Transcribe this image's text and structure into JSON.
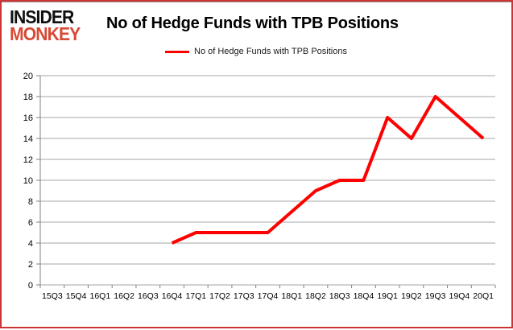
{
  "logo": {
    "line1": "INSIDER",
    "line2": "MONKEY"
  },
  "title": "No of Hedge Funds with TPB Positions",
  "legend": {
    "label": "No of Hedge Funds with TPB Positions"
  },
  "colors": {
    "series_red": "#ff0000",
    "logo_red": "#d84a35",
    "border_red": "#cc3333",
    "gridline_gray": "#a6a6a6",
    "axis_gray": "#808080",
    "text_black": "#000000"
  },
  "chart_data": {
    "type": "line",
    "title": "No of Hedge Funds with TPB Positions",
    "categories": [
      "15Q3",
      "15Q4",
      "16Q1",
      "16Q2",
      "16Q3",
      "16Q4",
      "17Q1",
      "17Q2",
      "17Q3",
      "17Q4",
      "18Q1",
      "18Q2",
      "18Q3",
      "18Q4",
      "19Q1",
      "19Q2",
      "19Q3",
      "19Q4",
      "20Q1"
    ],
    "series": [
      {
        "name": "No of Hedge Funds with TPB Positions",
        "color": "#ff0000",
        "values": [
          null,
          null,
          null,
          null,
          null,
          4,
          5,
          5,
          5,
          5,
          7,
          9,
          10,
          10,
          16,
          14,
          18,
          16,
          14
        ]
      }
    ],
    "xlabel": "",
    "ylabel": "",
    "ylim": [
      0,
      20
    ],
    "ytick_step": 2,
    "grid": true,
    "legend_position": "top-center"
  }
}
